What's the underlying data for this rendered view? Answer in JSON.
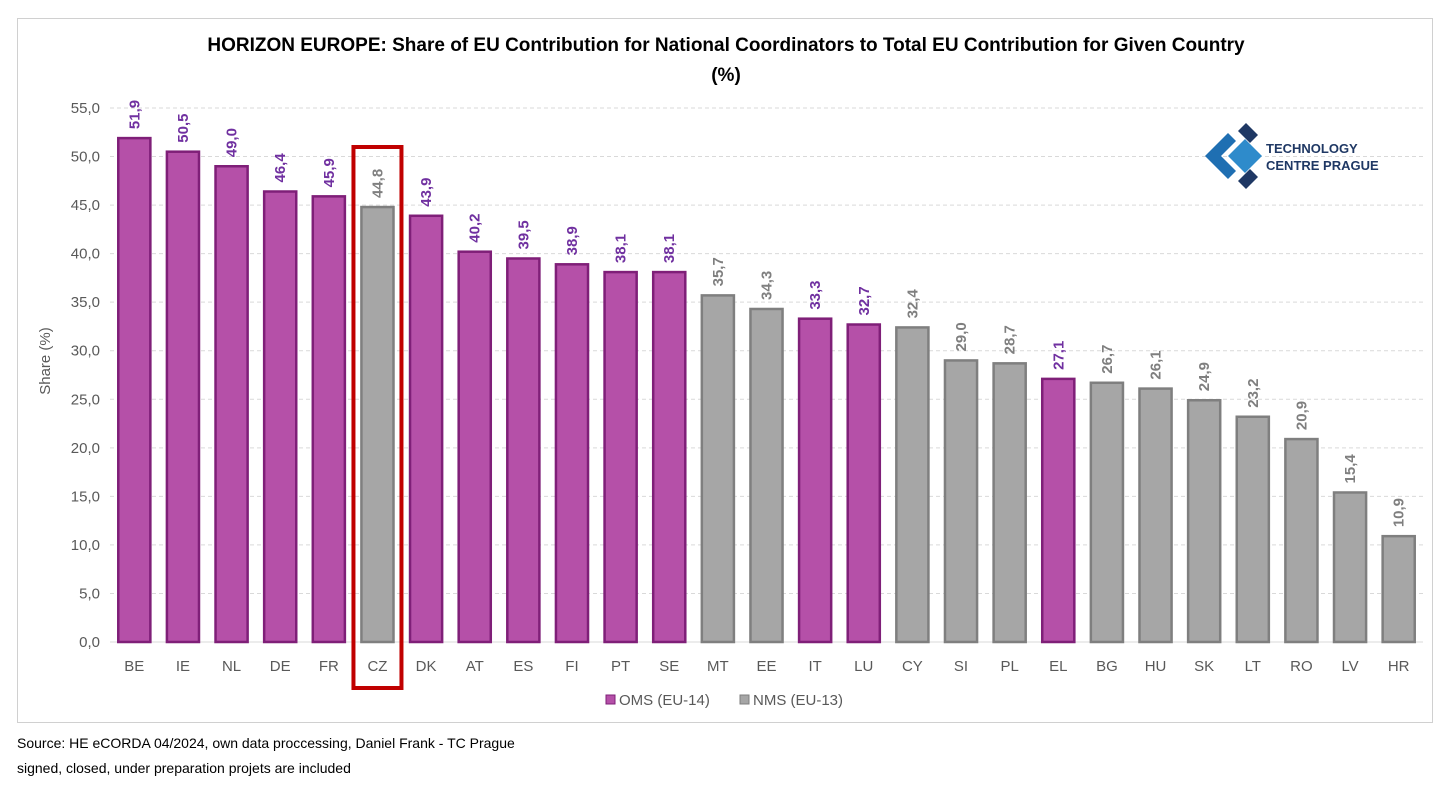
{
  "chart_data": {
    "type": "bar",
    "title_line1": "HORIZON EUROPE: Share of EU Contribution for National Coordinators to Total EU Contribution for Given Country",
    "title_line2": "(%)",
    "ylabel": "Share (%)",
    "xlabel": "",
    "ylim": [
      0,
      55
    ],
    "yticks": [
      "0,0",
      "5,0",
      "10,0",
      "15,0",
      "20,0",
      "25,0",
      "30,0",
      "35,0",
      "40,0",
      "45,0",
      "50,0",
      "55,0"
    ],
    "grid": "horizontal dashed",
    "categories": [
      "BE",
      "IE",
      "NL",
      "DE",
      "FR",
      "CZ",
      "DK",
      "AT",
      "ES",
      "FI",
      "PT",
      "SE",
      "MT",
      "EE",
      "IT",
      "LU",
      "CY",
      "SI",
      "PL",
      "EL",
      "BG",
      "HU",
      "SK",
      "LT",
      "RO",
      "LV",
      "HR"
    ],
    "values": [
      51.9,
      50.5,
      49.0,
      46.4,
      45.9,
      44.8,
      43.9,
      40.2,
      39.5,
      38.9,
      38.1,
      38.1,
      35.7,
      34.3,
      33.3,
      32.7,
      32.4,
      29.0,
      28.7,
      27.1,
      26.7,
      26.1,
      24.9,
      23.2,
      20.9,
      15.4,
      10.9
    ],
    "value_labels": [
      "51,9",
      "50,5",
      "49,0",
      "46,4",
      "45,9",
      "44,8",
      "43,9",
      "40,2",
      "39,5",
      "38,9",
      "38,1",
      "38,1",
      "35,7",
      "34,3",
      "33,3",
      "32,7",
      "32,4",
      "29,0",
      "28,7",
      "27,1",
      "26,7",
      "26,1",
      "24,9",
      "23,2",
      "20,9",
      "15,4",
      "10,9"
    ],
    "groups": [
      "OMS",
      "OMS",
      "OMS",
      "OMS",
      "OMS",
      "NMS",
      "OMS",
      "OMS",
      "OMS",
      "OMS",
      "OMS",
      "OMS",
      "NMS",
      "NMS",
      "OMS",
      "OMS",
      "NMS",
      "NMS",
      "NMS",
      "OMS",
      "NMS",
      "NMS",
      "NMS",
      "NMS",
      "NMS",
      "NMS",
      "NMS"
    ],
    "legend": [
      {
        "key": "OMS",
        "label": "OMS (EU-14)",
        "fill": "#b550a8",
        "stroke": "#7f1f78",
        "label_color": "#7030a0"
      },
      {
        "key": "NMS",
        "label": "NMS (EU-13)",
        "fill": "#a6a6a6",
        "stroke": "#7f7f7f",
        "label_color": "#7f7f7f"
      }
    ],
    "legend_position": "bottom",
    "highlighted_category": "CZ",
    "highlight_color": "#c00000"
  },
  "logo": {
    "line1": "TECHNOLOGY",
    "line2": "CENTRE PRAGUE"
  },
  "footnotes": {
    "source": "Source: HE eCORDA 04/2024, own data proccessing, Daniel Frank - TC Prague",
    "note": "signed, closed, under preparation projets are included"
  }
}
